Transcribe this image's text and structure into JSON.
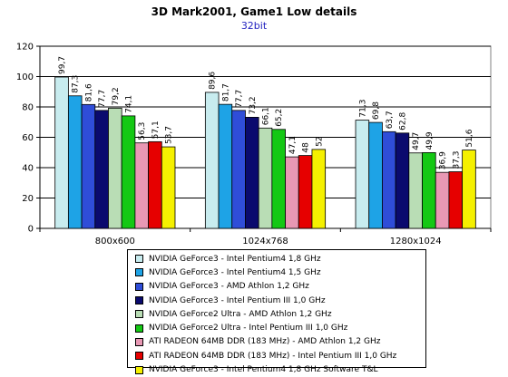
{
  "chart_data": {
    "type": "bar",
    "title": "3D Mark2001, Game1 Low details",
    "subtitle": "32bit",
    "categories": [
      "800x600",
      "1024x768",
      "1280x1024"
    ],
    "ylim": [
      0,
      120
    ],
    "yticks": [
      0,
      20,
      40,
      60,
      80,
      100,
      120
    ],
    "grid": true,
    "legend_position": "bottom",
    "series": [
      {
        "name": "NVIDIA GeForce3 - Intel Pentium4 1,8 GHz",
        "color": "#c8ecef",
        "values": [
          99.7,
          89.6,
          71.3
        ],
        "labels": [
          "99,7",
          "89,6",
          "71,3"
        ]
      },
      {
        "name": "NVIDIA GeForce3 - Intel Pentium4 1,5 GHz",
        "color": "#1ea3e6",
        "values": [
          87.3,
          81.7,
          69.8
        ],
        "labels": [
          "87,3",
          "81,7",
          "69,8"
        ]
      },
      {
        "name": "NVIDIA GeForce3 - AMD Athlon 1,2 GHz",
        "color": "#2f4dd8",
        "values": [
          81.6,
          77.7,
          63.7
        ],
        "labels": [
          "81,6",
          "77,7",
          "63,7"
        ]
      },
      {
        "name": "NVIDIA GeForce3 - Intel Pentium III 1,0 GHz",
        "color": "#0a0a6e",
        "values": [
          77.7,
          73.2,
          62.8
        ],
        "labels": [
          "77,7",
          "73,2",
          "62,8"
        ]
      },
      {
        "name": "NVIDIA GeForce2 Ultra - AMD Athlon 1,2 GHz",
        "color": "#b9ddb5",
        "values": [
          79.2,
          66.1,
          49.7
        ],
        "labels": [
          "79,2",
          "66,1",
          "49,7"
        ]
      },
      {
        "name": "NVIDIA GeForce2 Ultra - Intel Pentium III 1,0 GHz",
        "color": "#14c814",
        "values": [
          74.1,
          65.2,
          49.9
        ],
        "labels": [
          "74,1",
          "65,2",
          "49,9"
        ]
      },
      {
        "name": "ATI RADEON 64MB DDR (183 MHz) - AMD Athlon 1,2 GHz",
        "color": "#e898b4",
        "values": [
          56.3,
          47.1,
          36.9
        ],
        "labels": [
          "56,3",
          "47,1",
          "36,9"
        ]
      },
      {
        "name": "ATI RADEON 64MB DDR (183 MHz) - Intel Pentium III 1,0 GHz",
        "color": "#e60000",
        "values": [
          57.1,
          48,
          37.3
        ],
        "labels": [
          "57,1",
          "48",
          "37,3"
        ]
      },
      {
        "name": "NVIDIA GeForce3 - Intel Pentium4 1,8 GHz Software T&L",
        "color": "#f5f000",
        "values": [
          53.7,
          52,
          51.6
        ],
        "labels": [
          "53,7",
          "52",
          "51,6"
        ]
      }
    ]
  }
}
